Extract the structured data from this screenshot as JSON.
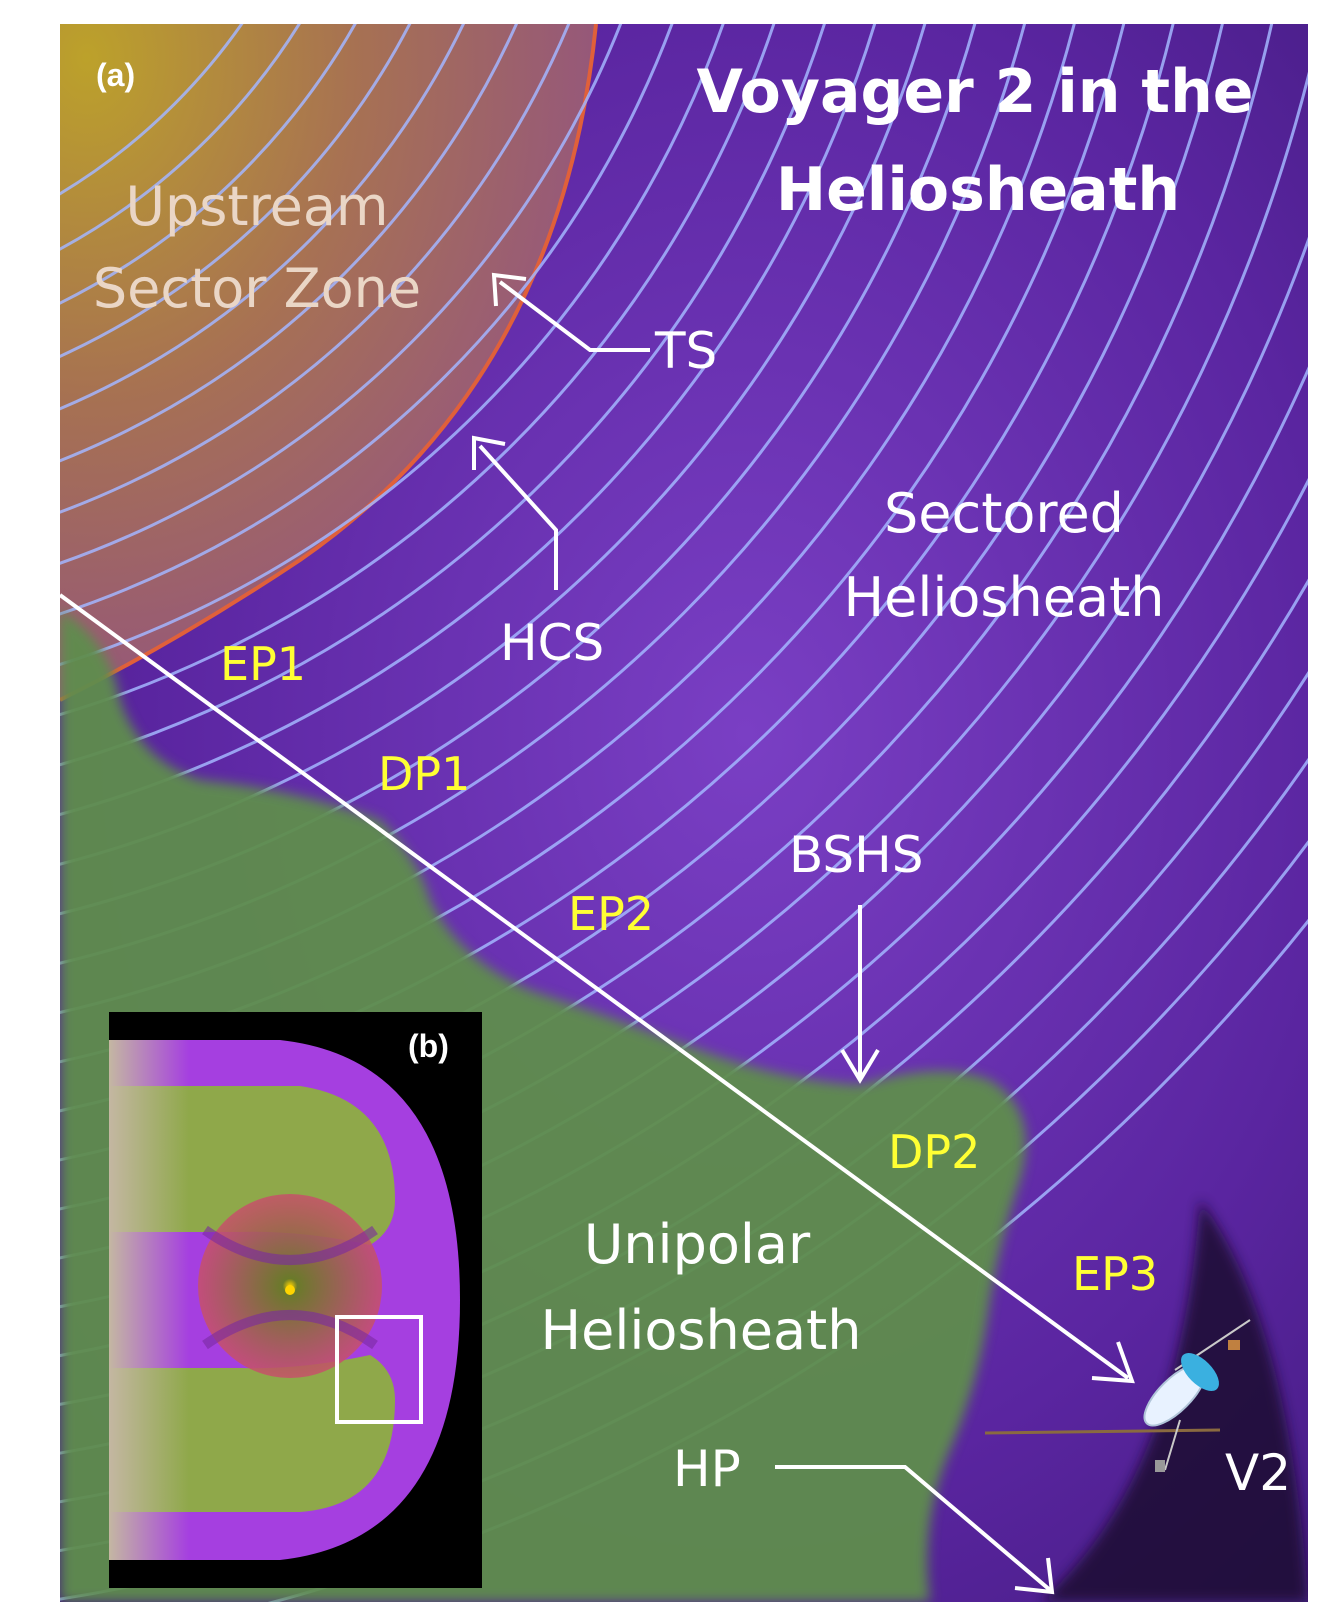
{
  "panel_a": {
    "panel_label": "(a)",
    "title_line1": "Voyager 2 in the",
    "title_line2": "Heliosheath",
    "regions": {
      "upstream_line1": "Upstream",
      "upstream_line2": "Sector Zone",
      "sectored_line1": "Sectored",
      "sectored_line2": "Heliosheath",
      "unipolar_line1": "Unipolar",
      "unipolar_line2": "Heliosheath"
    },
    "boundaries": {
      "ts": "TS",
      "hcs": "HCS",
      "bshs": "BSHS",
      "hp": "HP"
    },
    "trajectory_labels": [
      "EP1",
      "DP1",
      "EP2",
      "DP2",
      "EP3"
    ],
    "spacecraft": "V2"
  },
  "panel_b": {
    "panel_label": "(b)"
  },
  "colors": {
    "background_purple": "#5a25a0",
    "upstream_zone": "#b08a3a",
    "unipolar_green": "#5f8d4e",
    "field_lines": "#a4b6ff",
    "termination_shock": "#e0603a",
    "label_white": "#ffffff",
    "label_yellow": "#ffff33",
    "inset_magenta": "#a53fe0",
    "inset_olive": "#8fa84a"
  }
}
